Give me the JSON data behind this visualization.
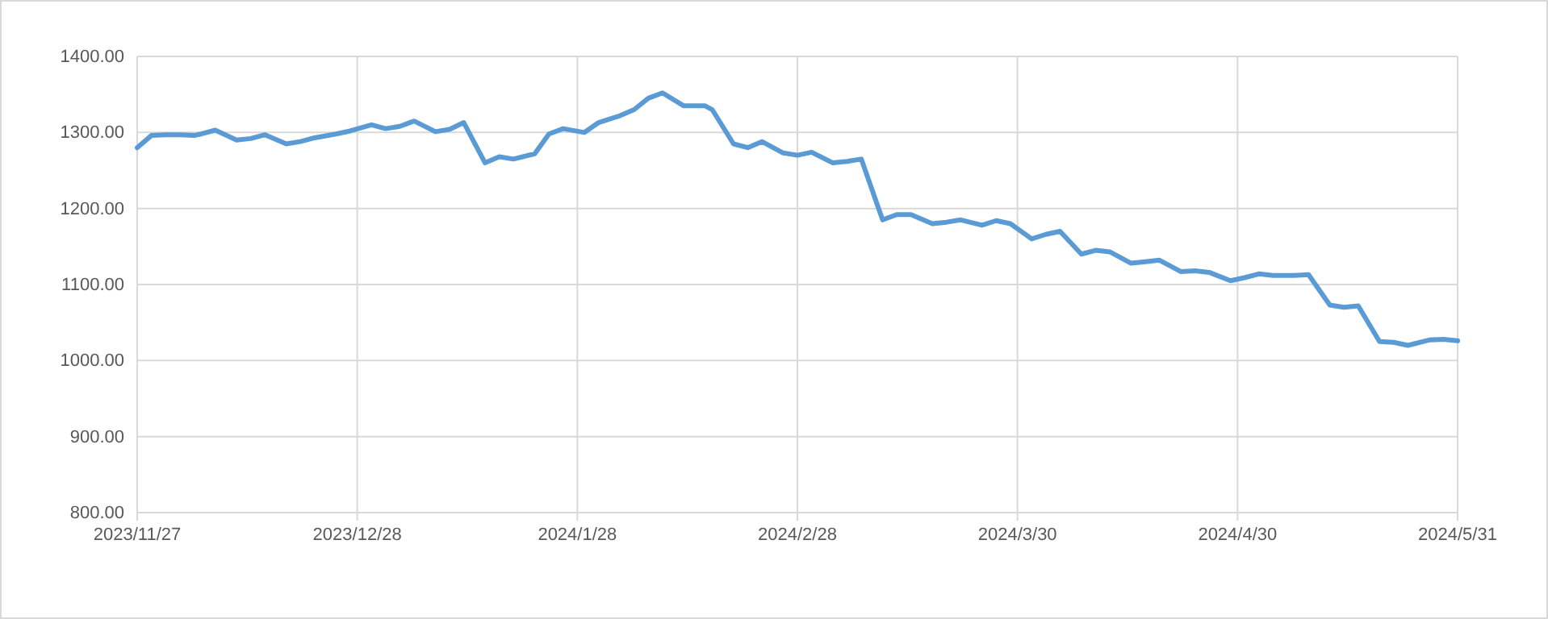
{
  "chart_data": {
    "type": "line",
    "grid": true,
    "marker": "none",
    "line_style": "solid",
    "x": [
      "2023-11-27",
      "2023-11-29",
      "2023-12-01",
      "2023-12-03",
      "2023-12-05",
      "2023-12-06",
      "2023-12-08",
      "2023-12-11",
      "2023-12-13",
      "2023-12-15",
      "2023-12-18",
      "2023-12-20",
      "2023-12-22",
      "2023-12-25",
      "2023-12-27",
      "2023-12-30",
      "2024-01-01",
      "2024-01-03",
      "2024-01-05",
      "2024-01-08",
      "2024-01-10",
      "2024-01-12",
      "2024-01-15",
      "2024-01-17",
      "2024-01-19",
      "2024-01-22",
      "2024-01-24",
      "2024-01-26",
      "2024-01-29",
      "2024-01-31",
      "2024-02-03",
      "2024-02-05",
      "2024-02-07",
      "2024-02-09",
      "2024-02-12",
      "2024-02-15",
      "2024-02-16",
      "2024-02-19",
      "2024-02-21",
      "2024-02-23",
      "2024-02-26",
      "2024-02-28",
      "2024-03-01",
      "2024-03-04",
      "2024-03-06",
      "2024-03-08",
      "2024-03-11",
      "2024-03-13",
      "2024-03-15",
      "2024-03-18",
      "2024-03-20",
      "2024-03-22",
      "2024-03-25",
      "2024-03-27",
      "2024-03-29",
      "2024-04-01",
      "2024-04-03",
      "2024-04-05",
      "2024-04-08",
      "2024-04-10",
      "2024-04-12",
      "2024-04-15",
      "2024-04-17",
      "2024-04-19",
      "2024-04-22",
      "2024-04-24",
      "2024-04-26",
      "2024-04-29",
      "2024-05-01",
      "2024-05-03",
      "2024-05-05",
      "2024-05-08",
      "2024-05-10",
      "2024-05-13",
      "2024-05-15",
      "2024-05-17",
      "2024-05-20",
      "2024-05-22",
      "2024-05-24",
      "2024-05-27",
      "2024-05-29",
      "2024-05-31"
    ],
    "series": [
      {
        "color": "#5b9bd5",
        "values": [
          1280,
          1296,
          1297,
          1297,
          1296,
          1298,
          1303,
          1290,
          1292,
          1297,
          1285,
          1288,
          1293,
          1298,
          1302,
          1310,
          1305,
          1308,
          1315,
          1301,
          1304,
          1313,
          1260,
          1268,
          1265,
          1272,
          1298,
          1305,
          1300,
          1313,
          1322,
          1330,
          1345,
          1352,
          1335,
          1335,
          1330,
          1285,
          1280,
          1288,
          1273,
          1270,
          1274,
          1260,
          1262,
          1265,
          1185,
          1192,
          1192,
          1180,
          1182,
          1185,
          1178,
          1184,
          1180,
          1160,
          1166,
          1170,
          1140,
          1145,
          1143,
          1128,
          1130,
          1132,
          1117,
          1118,
          1116,
          1105,
          1109,
          1114,
          1112,
          1112,
          1113,
          1073,
          1070,
          1072,
          1025,
          1024,
          1020,
          1027,
          1028,
          1026
        ]
      }
    ],
    "xlim": [
      "2023-11-27",
      "2024-05-31"
    ],
    "xticks": [
      {
        "value": "2023-11-27",
        "label": "2023/11/27"
      },
      {
        "value": "2023-12-28",
        "label": "2023/12/28"
      },
      {
        "value": "2024-01-28",
        "label": "2024/1/28"
      },
      {
        "value": "2024-02-28",
        "label": "2024/2/28"
      },
      {
        "value": "2024-03-30",
        "label": "2024/3/30"
      },
      {
        "value": "2024-04-30",
        "label": "2024/4/30"
      },
      {
        "value": "2024-05-31",
        "label": "2024/5/31"
      }
    ],
    "ylim": [
      800,
      1400
    ],
    "yticks": [
      {
        "value": 800,
        "label": "800.00"
      },
      {
        "value": 900,
        "label": "900.00"
      },
      {
        "value": 1000,
        "label": "1000.00"
      },
      {
        "value": 1100,
        "label": "1100.00"
      },
      {
        "value": 1200,
        "label": "1200.00"
      },
      {
        "value": 1300,
        "label": "1300.00"
      },
      {
        "value": 1400,
        "label": "1400.00"
      }
    ]
  }
}
